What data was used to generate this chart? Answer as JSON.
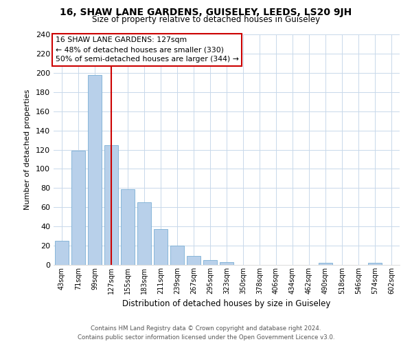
{
  "title": "16, SHAW LANE GARDENS, GUISELEY, LEEDS, LS20 9JH",
  "subtitle": "Size of property relative to detached houses in Guiseley",
  "xlabel": "Distribution of detached houses by size in Guiseley",
  "ylabel": "Number of detached properties",
  "bar_labels": [
    "43sqm",
    "71sqm",
    "99sqm",
    "127sqm",
    "155sqm",
    "183sqm",
    "211sqm",
    "239sqm",
    "267sqm",
    "295sqm",
    "323sqm",
    "350sqm",
    "378sqm",
    "406sqm",
    "434sqm",
    "462sqm",
    "490sqm",
    "518sqm",
    "546sqm",
    "574sqm",
    "602sqm"
  ],
  "bar_values": [
    25,
    119,
    198,
    125,
    79,
    65,
    37,
    20,
    9,
    5,
    3,
    0,
    0,
    0,
    0,
    0,
    2,
    0,
    0,
    2,
    0
  ],
  "bar_color": "#b8d0ea",
  "bar_edge_color": "#7aaed4",
  "ylim": [
    0,
    240
  ],
  "yticks": [
    0,
    20,
    40,
    60,
    80,
    100,
    120,
    140,
    160,
    180,
    200,
    220,
    240
  ],
  "property_size_label": "127sqm",
  "vline_color": "#cc0000",
  "annotation_title": "16 SHAW LANE GARDENS: 127sqm",
  "annotation_line1": "← 48% of detached houses are smaller (330)",
  "annotation_line2": "50% of semi-detached houses are larger (344) →",
  "annotation_box_color": "#ffffff",
  "annotation_box_edge": "#cc0000",
  "footer_line1": "Contains HM Land Registry data © Crown copyright and database right 2024.",
  "footer_line2": "Contains public sector information licensed under the Open Government Licence v3.0.",
  "background_color": "#ffffff",
  "grid_color": "#c8d8ea"
}
